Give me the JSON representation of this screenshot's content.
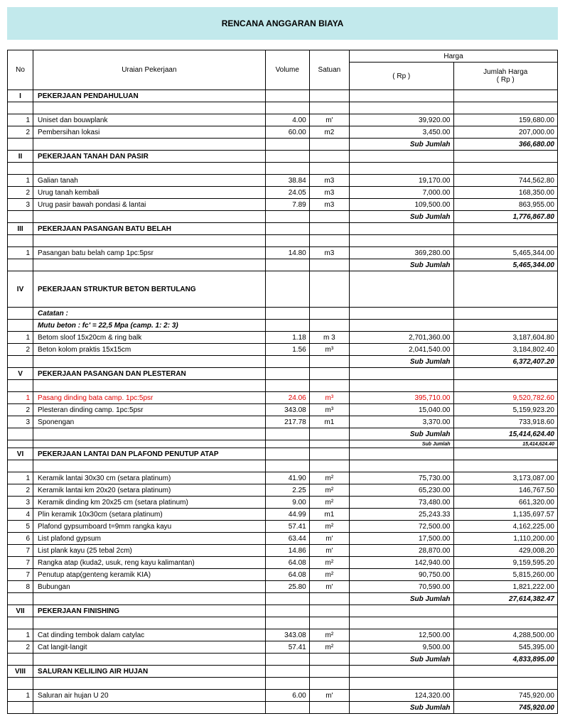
{
  "title": "RENCANA ANGGARAN BIAYA",
  "headers": {
    "no": "No",
    "desc": "Uraian Pekerjaan",
    "vol": "Volume",
    "sat": "Satuan",
    "harga": "Harga",
    "rp": "( Rp )",
    "total": "Jumlah  Harga\n( Rp )"
  },
  "subtotal_label": "Sub Jumlah",
  "sections": [
    {
      "roman": "I",
      "title": "PEKERJAAN PENDAHULUAN",
      "rows": [
        {
          "no": "1",
          "desc": "Uniset dan bouwplank",
          "vol": "4.00",
          "sat": "m'",
          "rp": "39,920.00",
          "total": "159,680.00"
        },
        {
          "no": "2",
          "desc": "Pembersihan lokasi",
          "vol": "60.00",
          "sat": "m2",
          "rp": "3,450.00",
          "total": "207,000.00"
        }
      ],
      "subtotal": "366,680.00"
    },
    {
      "roman": "II",
      "title": "PEKERJAAN TANAH DAN PASIR",
      "rows": [
        {
          "no": "1",
          "desc": "Galian tanah",
          "vol": "38.84",
          "sat": "m3",
          "rp": "19,170.00",
          "total": "744,562.80"
        },
        {
          "no": "2",
          "desc": "Urug tanah kembali",
          "vol": "24.05",
          "sat": "m3",
          "rp": "7,000.00",
          "total": "168,350.00"
        },
        {
          "no": "3",
          "desc": "Urug pasir bawah pondasi & lantai",
          "vol": "7.89",
          "sat": "m3",
          "rp": "109,500.00",
          "total": "863,955.00"
        }
      ],
      "subtotal": "1,776,867.80"
    },
    {
      "roman": "III",
      "title": "PEKERJAAN PASANGAN BATU BELAH",
      "rows": [
        {
          "no": "1",
          "desc": "Pasangan batu belah camp 1pc:5psr",
          "vol": "14.80",
          "sat": "m3",
          "rp": "369,280.00",
          "total": "5,465,344.00"
        }
      ],
      "subtotal": "5,465,344.00"
    },
    {
      "roman": "IV",
      "title": "PEKERJAAN STRUKTUR BETON BERTULANG",
      "tall": true,
      "notes": [
        "Catatan :",
        "Mutu beton : fc' = 22,5 Mpa  (camp. 1: 2: 3)"
      ],
      "rows": [
        {
          "no": "1",
          "desc": "Betom sloof 15x20cm & ring balk",
          "vol": "1.18",
          "sat": "m 3",
          "rp": "2,701,360.00",
          "total": "3,187,604.80"
        },
        {
          "no": "2",
          "desc": "Beton kolom praktis 15x15cm",
          "vol": "1.56",
          "sat": "m³",
          "rp": "2,041,540.00",
          "total": "3,184,802.40"
        }
      ],
      "subtotal": "6,372,407.20"
    },
    {
      "roman": "V",
      "title": "PEKERJAAN PASANGAN DAN PLESTERAN",
      "rows": [
        {
          "no": "1",
          "desc": "Pasang dinding bata camp. 1pc:5psr",
          "vol": "24.06",
          "sat": "m³",
          "rp": "395,710.00",
          "total": "9,520,782.60",
          "red": true
        },
        {
          "no": "2",
          "desc": "Plesteran dinding camp. 1pc:5psr",
          "vol": "343.08",
          "sat": "m³",
          "rp": "15,040.00",
          "total": "5,159,923.20"
        },
        {
          "no": "3",
          "desc": "Sponengan",
          "vol": "217.78",
          "sat": "m1",
          "rp": "3,370.00",
          "total": "733,918.60"
        }
      ],
      "subtotal": "15,414,624.40",
      "extra_sub": "15,414,624.40"
    },
    {
      "roman": "VI",
      "title": "PEKERJAAN LANTAI DAN PLAFOND PENUTUP ATAP",
      "rows": [
        {
          "no": "1",
          "desc": "Keramik lantai 30x30 cm (setara platinum)",
          "vol": "41.90",
          "sat": "m²",
          "rp": "75,730.00",
          "total": "3,173,087.00"
        },
        {
          "no": "2",
          "desc": "Keramik lantai km 20x20 (setara platinum)",
          "vol": "2.25",
          "sat": "m²",
          "rp": "65,230.00",
          "total": "146,767.50"
        },
        {
          "no": "3",
          "desc": "Keramik dinding km 20x25 cm (setara platinum)",
          "vol": "9.00",
          "sat": "m²",
          "rp": "73,480.00",
          "total": "661,320.00"
        },
        {
          "no": "4",
          "desc": "Plin keramik 10x30cm (setara platinum)",
          "vol": "44.99",
          "sat": "m1",
          "rp": "25,243.33",
          "total": "1,135,697.57"
        },
        {
          "no": "5",
          "desc": "Plafond gypsumboard t=9mm rangka kayu",
          "vol": "57.41",
          "sat": "m²",
          "rp": "72,500.00",
          "total": "4,162,225.00"
        },
        {
          "no": "6",
          "desc": "List plafond gypsum",
          "vol": "63.44",
          "sat": "m'",
          "rp": "17,500.00",
          "total": "1,110,200.00"
        },
        {
          "no": "7",
          "desc": "List plank kayu (25 tebal 2cm)",
          "vol": "14.86",
          "sat": "m'",
          "rp": "28,870.00",
          "total": "429,008.20"
        },
        {
          "no": "7",
          "desc": "Rangka atap (kuda2, usuk, reng kayu kalimantan)",
          "vol": "64.08",
          "sat": "m²",
          "rp": "142,940.00",
          "total": "9,159,595.20"
        },
        {
          "no": "7",
          "desc": "Penutup atap(genteng keramik KIA)",
          "vol": "64.08",
          "sat": "m²",
          "rp": "90,750.00",
          "total": "5,815,260.00"
        },
        {
          "no": "8",
          "desc": "Bubungan",
          "vol": "25.80",
          "sat": "m'",
          "rp": "70,590.00",
          "total": "1,821,222.00"
        }
      ],
      "subtotal": "27,614,382.47"
    },
    {
      "roman": "VII",
      "title": "PEKERJAAN FINISHING",
      "rows": [
        {
          "no": "1",
          "desc": "Cat dinding tembok dalam catylac",
          "vol": "343.08",
          "sat": "m²",
          "rp": "12,500.00",
          "total": "4,288,500.00"
        },
        {
          "no": "2",
          "desc": "Cat langit-langit",
          "vol": "57.41",
          "sat": "m²",
          "rp": "9,500.00",
          "total": "545,395.00"
        }
      ],
      "subtotal": "4,833,895.00"
    },
    {
      "roman": "VIII",
      "title": "SALURAN KELILING AIR HUJAN",
      "rows": [
        {
          "no": "1",
          "desc": "Saluran air hujan U 20",
          "vol": "6.00",
          "sat": "m'",
          "rp": "124,320.00",
          "total": "745,920.00"
        }
      ],
      "subtotal": "745,920.00"
    }
  ]
}
